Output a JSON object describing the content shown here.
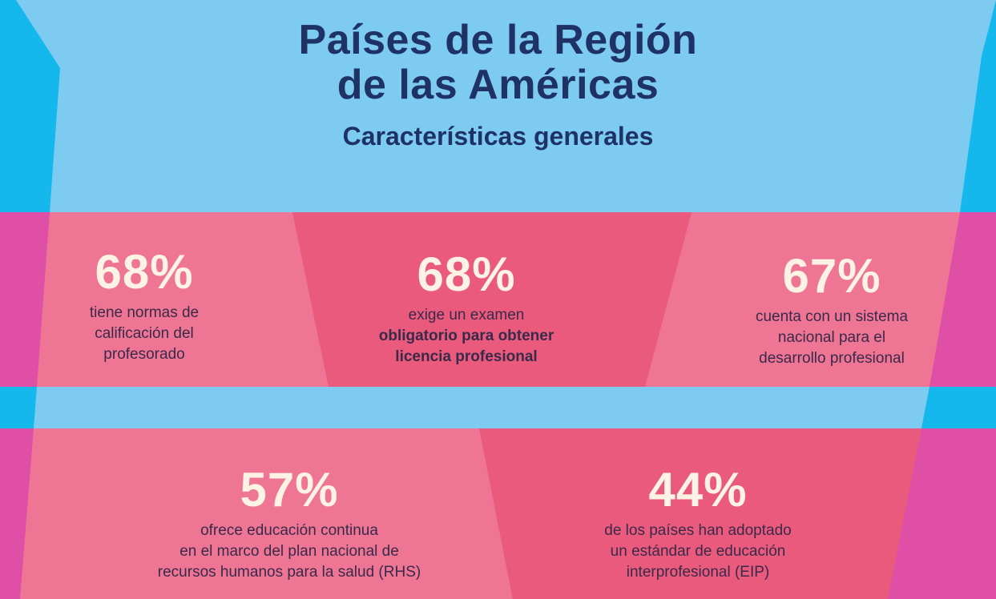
{
  "header": {
    "title_line1": "Países de la Región",
    "title_line2": "de las Américas",
    "subtitle": "Características generales"
  },
  "stats": [
    {
      "value": "68%",
      "text": [
        "tiene normas de",
        "calificación del",
        "profesorado"
      ]
    },
    {
      "value": "68%",
      "text_plain": "exige un examen",
      "text_bold": [
        "obligatorio para obtener",
        "licencia profesional"
      ]
    },
    {
      "value": "67%",
      "text": [
        "cuenta con un sistema",
        "nacional para el",
        "desarrollo profesional"
      ]
    },
    {
      "value": "57%",
      "text": [
        "ofrece educación continua",
        "en el marco del plan nacional de",
        "recursos humanos para la salud (RHS)"
      ]
    },
    {
      "value": "44%",
      "text": [
        "de los países han adoptado",
        "un estándar de educación",
        "interprofesional (EIP)"
      ]
    }
  ],
  "colors": {
    "title": "#1f3266",
    "light_blue": "#7ecbf1",
    "bright_blue": "#14b8ec",
    "pink_light": "#ef7594",
    "pink_dark": "#ea5a7d",
    "magenta": "#e04fa6",
    "number_cream": "#fdf3e4"
  }
}
